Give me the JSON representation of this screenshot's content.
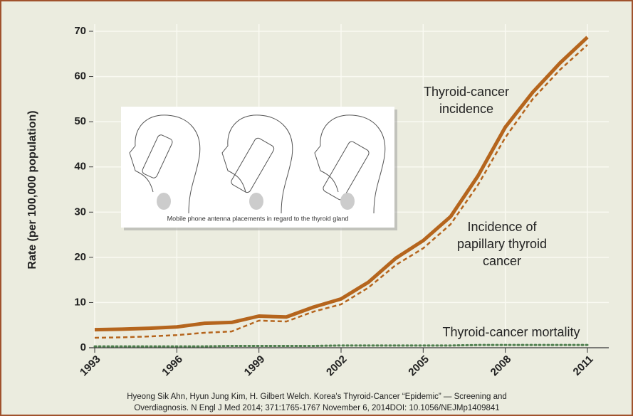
{
  "chart_data": {
    "type": "line",
    "ylabel": "Rate (per 100,000 population)",
    "x": [
      1993,
      1994,
      1995,
      1996,
      1997,
      1998,
      1999,
      2000,
      2001,
      2002,
      2003,
      2004,
      2005,
      2006,
      2007,
      2008,
      2009,
      2010,
      2011
    ],
    "series": [
      {
        "name": "Thyroid-cancer incidence",
        "color": "#b5651d",
        "style": "solid",
        "values": [
          4.0,
          4.1,
          4.3,
          4.6,
          5.4,
          5.6,
          7.0,
          6.8,
          9.0,
          10.8,
          14.5,
          19.8,
          23.7,
          29.0,
          38.0,
          48.8,
          56.5,
          63.0,
          68.7
        ]
      },
      {
        "name": "Incidence of papillary thyroid cancer",
        "color": "#b5651d",
        "style": "dashed",
        "values": [
          2.2,
          2.3,
          2.5,
          2.8,
          3.3,
          3.6,
          6.0,
          5.8,
          8.0,
          9.6,
          13.3,
          18.3,
          22.0,
          27.3,
          36.0,
          46.5,
          55.0,
          61.5,
          67.0
        ]
      },
      {
        "name": "Thyroid-cancer mortality",
        "color": "#4f7f4f",
        "style": "dotted",
        "values": [
          0.3,
          0.3,
          0.3,
          0.3,
          0.3,
          0.4,
          0.4,
          0.4,
          0.4,
          0.5,
          0.5,
          0.5,
          0.5,
          0.5,
          0.6,
          0.6,
          0.6,
          0.6,
          0.6
        ]
      }
    ],
    "annotations": [
      [
        "Thyroid-cancer",
        "incidence"
      ],
      [
        "Incidence of",
        "papillary thyroid",
        "cancer"
      ],
      [
        "Thyroid-cancer mortality"
      ]
    ],
    "xlim": [
      1993,
      2011
    ],
    "xticks": [
      1993,
      1996,
      1999,
      2002,
      2005,
      2008,
      2011
    ],
    "ylim": [
      0,
      70
    ],
    "yticks": [
      0,
      10,
      20,
      30,
      40,
      50,
      60,
      70
    ],
    "grid": true,
    "inset_caption": "Mobile phone antenna placements in regard to the thyroid gland",
    "source": [
      "Hyeong Sik Ahn, Hyun Jung Kim, H. Gilbert Welch. Korea's Thyroid-Cancer “Epidemic” — Screening and",
      "Overdiagnosis. N Engl J Med 2014; 371:1765-1767 November 6, 2014DOI: 10.1056/NEJMp1409841"
    ]
  }
}
